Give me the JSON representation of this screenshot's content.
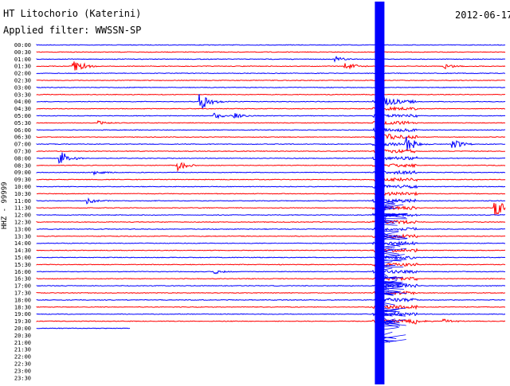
{
  "header": {
    "station": "HT Litochorio (Katerini)",
    "filter": "Applied filter: WWSSN-SP",
    "date": "2012-06-17"
  },
  "chart_data": {
    "type": "line",
    "title": "HT Litochorio (Katerini)",
    "subtitle": "Applied filter: WWSSN-SP",
    "date": "2012-06-17",
    "channel_label": "HHZ - 99999",
    "colors": {
      "odd_rows": "#0000ff",
      "even_rows": "#ff0000",
      "text": "#000000"
    },
    "time_labels": [
      "00:00",
      "00:30",
      "01:00",
      "01:30",
      "02:00",
      "02:30",
      "03:00",
      "03:30",
      "04:00",
      "04:30",
      "05:00",
      "05:30",
      "06:00",
      "06:30",
      "07:00",
      "07:30",
      "08:00",
      "08:30",
      "09:00",
      "09:30",
      "10:00",
      "10:30",
      "11:00",
      "11:30",
      "12:00",
      "12:30",
      "13:00",
      "13:30",
      "14:00",
      "14:30",
      "15:00",
      "15:30",
      "16:00",
      "16:30",
      "17:00",
      "17:30",
      "18:00",
      "18:30",
      "19:00",
      "19:30",
      "20:00",
      "20:30",
      "21:00",
      "21:30",
      "22:00",
      "22:30",
      "23:00",
      "23:30"
    ],
    "last_data_row": "20:00",
    "events": [
      {
        "row": "01:30",
        "at": 0.08,
        "amp": 1.0
      },
      {
        "row": "01:30",
        "at": 0.66,
        "amp": 0.45
      },
      {
        "row": "01:30",
        "at": 0.87,
        "amp": 0.35
      },
      {
        "row": "01:00",
        "at": 0.64,
        "amp": 0.25
      },
      {
        "row": "04:00",
        "at": 0.35,
        "amp": 1.0
      },
      {
        "row": "04:00",
        "at": 0.73,
        "amp": 0.9
      },
      {
        "row": "05:00",
        "at": 0.38,
        "amp": 0.35
      },
      {
        "row": "05:00",
        "at": 0.42,
        "amp": 0.3
      },
      {
        "row": "05:30",
        "at": 0.13,
        "amp": 0.2
      },
      {
        "row": "06:30",
        "at": 0.73,
        "amp": 0.6
      },
      {
        "row": "07:00",
        "at": 0.79,
        "amp": 0.7
      },
      {
        "row": "07:00",
        "at": 0.89,
        "amp": 0.5
      },
      {
        "row": "08:00",
        "at": 0.05,
        "amp": 0.9
      },
      {
        "row": "08:30",
        "at": 0.3,
        "amp": 0.6
      },
      {
        "row": "09:00",
        "at": 0.12,
        "amp": 0.25
      },
      {
        "row": "11:00",
        "at": 0.11,
        "amp": 0.3
      },
      {
        "row": "11:30",
        "at": 0.98,
        "amp": 1.0
      },
      {
        "row": "16:00",
        "at": 0.38,
        "amp": 0.25
      },
      {
        "row": "19:30",
        "at": 0.8,
        "amp": 0.3
      },
      {
        "row": "19:30",
        "at": 0.87,
        "amp": 0.25
      }
    ],
    "main_event": {
      "row": "04:00",
      "at": 0.732
    },
    "ylabel": "",
    "xlabel": "",
    "grid": false
  }
}
